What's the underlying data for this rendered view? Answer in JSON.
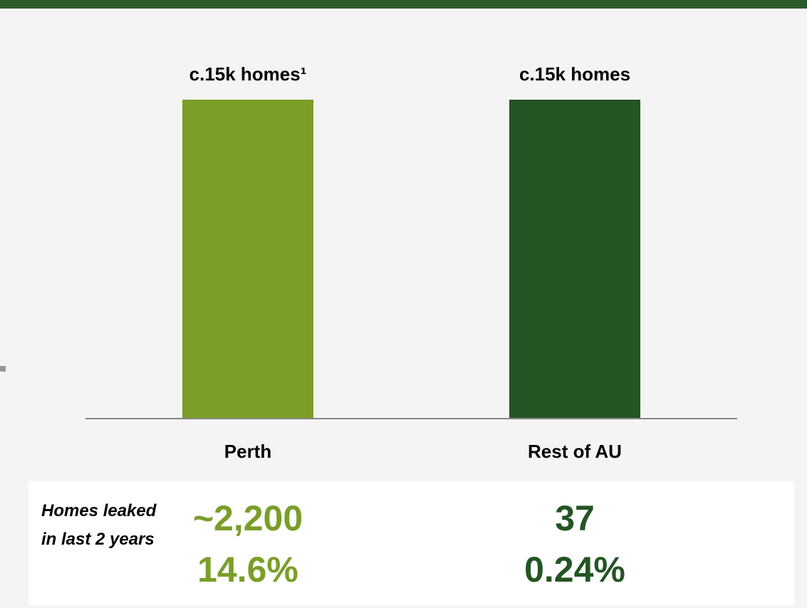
{
  "chart_data": {
    "type": "bar",
    "categories": [
      "Perth",
      "Rest of AU"
    ],
    "values": [
      15,
      15
    ],
    "value_labels": [
      "c.15k homes¹",
      "c.15k homes"
    ],
    "colors": [
      "#7a9e28",
      "#245524"
    ],
    "stats": {
      "label": "Homes leaked in last 2 years",
      "rows": [
        [
          "~2,200",
          "37"
        ],
        [
          "14.6%",
          "0.24%"
        ]
      ]
    }
  }
}
